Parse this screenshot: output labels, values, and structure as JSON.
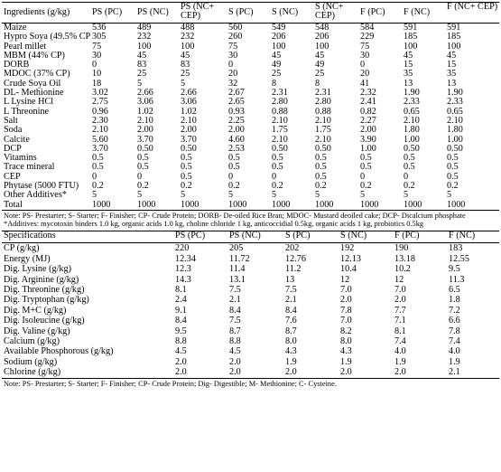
{
  "ingredients_table": {
    "headers": [
      "Ingredients (g/kg)",
      "PS (PC)",
      "PS (NC)",
      "PS (NC+ CEP)",
      "S (PC)",
      "S (NC)",
      "S (NC+ CEP)",
      "F (PC)",
      "F (NC)",
      "F (NC+ CEP)"
    ],
    "rows": [
      [
        "Maize",
        "536",
        "489",
        "488",
        "560",
        "549",
        "548",
        "584",
        "591",
        "591"
      ],
      [
        "Hypro Soya (49.5% CP)",
        "305",
        "232",
        "232",
        "260",
        "206",
        "206",
        "229",
        "185",
        "185"
      ],
      [
        "Pearl millet",
        "75",
        "100",
        "100",
        "75",
        "100",
        "100",
        "75",
        "100",
        "100"
      ],
      [
        "MBM (44% CP)",
        "30",
        "45",
        "45",
        "30",
        "45",
        "45",
        "30",
        "45",
        "45"
      ],
      [
        "DORB",
        "0",
        "83",
        "83",
        "0",
        "49",
        "49",
        "0",
        "15",
        "15"
      ],
      [
        "MDOC (37% CP)",
        "10",
        "25",
        "25",
        "20",
        "25",
        "25",
        "20",
        "35",
        "35"
      ],
      [
        "Crude Soya Oil",
        "18",
        "5",
        "5",
        "32",
        "8",
        "8",
        "41",
        "13",
        "13"
      ],
      [
        "DL- Methionine",
        "3.02",
        "2.66",
        "2.66",
        "2.67",
        "2.31",
        "2.31",
        "2.32",
        "1.90",
        "1.90"
      ],
      [
        "L Lysine HCl",
        "2.75",
        "3.06",
        "3.06",
        "2.65",
        "2.80",
        "2.80",
        "2.41",
        "2.33",
        "2.33"
      ],
      [
        "L Threonine",
        "0.96",
        "1.02",
        "1.02",
        "0.93",
        "0.88",
        "0.88",
        "0.82",
        "0.65",
        "0.65"
      ],
      [
        "Salt",
        "2.30",
        "2.10",
        "2.10",
        "2.25",
        "2.10",
        "2.10",
        "2.27",
        "2.10",
        "2.10"
      ],
      [
        "Soda",
        "2.10",
        "2.00",
        "2.00",
        "2.00",
        "1.75",
        "1.75",
        "2.00",
        "1.80",
        "1.80"
      ],
      [
        "Calcite",
        "5.60",
        "3.70",
        "3.70",
        "4.60",
        "2.10",
        "2.10",
        "3.90",
        "1.00",
        "1.00"
      ],
      [
        "DCP",
        "3.70",
        "0.50",
        "0.50",
        "2.53",
        "0.50",
        "0.50",
        "1.00",
        "0.50",
        "0.50"
      ],
      [
        "Vitamins",
        "0.5",
        "0.5",
        "0.5",
        "0.5",
        "0.5",
        "0.5",
        "0.5",
        "0.5",
        "0.5"
      ],
      [
        "Trace mineral",
        "0.5",
        "0.5",
        "0.5",
        "0.5",
        "0.5",
        "0.5",
        "0.5",
        "0.5",
        "0.5"
      ],
      [
        "CEP",
        "0",
        "0",
        "0.5",
        "0",
        "0",
        "0.5",
        "0",
        "0",
        "0.5"
      ],
      [
        "Phytase (5000 FTU)",
        "0.2",
        "0.2",
        "0.2",
        "0.2",
        "0.2",
        "0.2",
        "0.2",
        "0.2",
        "0.2"
      ],
      [
        "Other Additives*",
        "5",
        "5",
        "5",
        "5",
        "5",
        "5",
        "5",
        "5",
        "5"
      ],
      [
        "Total",
        "1000",
        "1000",
        "1000",
        "1000",
        "1000",
        "1000",
        "1000",
        "1000",
        "1000"
      ]
    ]
  },
  "note1": "Note: PS- Prestarter; S- Starter; F- Finisher; CP- Crude Protein; DORB- De-oiled Rice Bran; MDOC- Mustard deoiled cake; DCP- Dicalcium phosphate",
  "note2": "*Additives: mycotoxin binders 1.0 kg, organic acids 1.0 kg, choline chloride 1 kg, anticoccidial 0.5kg, organic acids 1 kg, probiotics 0.5kg",
  "specs_table": {
    "headers": [
      "Specifications",
      "PS (PC)",
      "PS (NC)",
      "S (PC)",
      "S (NC)",
      "F (PC)",
      "F (NC)"
    ],
    "rows": [
      [
        "CP (g/kg)",
        "220",
        "205",
        "202",
        "192",
        "190",
        "183"
      ],
      [
        "Energy (MJ)",
        "12.34",
        "11.72",
        "12.76",
        "12.13",
        "13.18",
        "12.55"
      ],
      [
        "Dig. Lysine (g/kg)",
        "12.3",
        "11.4",
        "11.2",
        "10.4",
        "10.2",
        "9.5"
      ],
      [
        "Dig. Arginine (g/kg)",
        "14.3",
        "13.1",
        "13",
        "12",
        "12",
        "11.3"
      ],
      [
        "Dig. Threonine (g/kg)",
        "8.1",
        "7.5",
        "7.5",
        "7.0",
        "7.0",
        "6.5"
      ],
      [
        "Dig. Tryptophan (g/kg)",
        "2.4",
        "2.1",
        "2.1",
        "2.0",
        "2.0",
        "1.8"
      ],
      [
        "Dig. M+C (g/kg)",
        "9.1",
        "8.4",
        "8.4",
        "7.8",
        "7.7",
        "7.2"
      ],
      [
        "Dig. Isoleucine (g/kg)",
        "8.4",
        "7.5",
        "7.6",
        "7.0",
        "7.1",
        "6.6"
      ],
      [
        "Dig. Valine (g/kg)",
        "9.5",
        "8.7",
        "8.7",
        "8.2",
        "8.1",
        "7.8"
      ],
      [
        "Calcium (g/kg)",
        "8.8",
        "8.8",
        "8.0",
        "8.0",
        "7.4",
        "7.4"
      ],
      [
        "Available Phosphorous (g/kg)",
        "4.5",
        "4.5",
        "4.3",
        "4.3",
        "4.0",
        "4.0"
      ],
      [
        "Sodium (g/kg)",
        "2.0",
        "2.0",
        "1.9",
        "1.9",
        "1.9",
        "1.9"
      ],
      [
        "Chlorine (g/kg)",
        "2.0",
        "2.0",
        "2.0",
        "2.0",
        "2.0",
        "2.1"
      ]
    ]
  },
  "note3": "Note: PS- Prestarter; S- Starter; F- Finisher; CP- Crude Protein; Dig- Digestible; M- Methionine; C- Cysteine."
}
